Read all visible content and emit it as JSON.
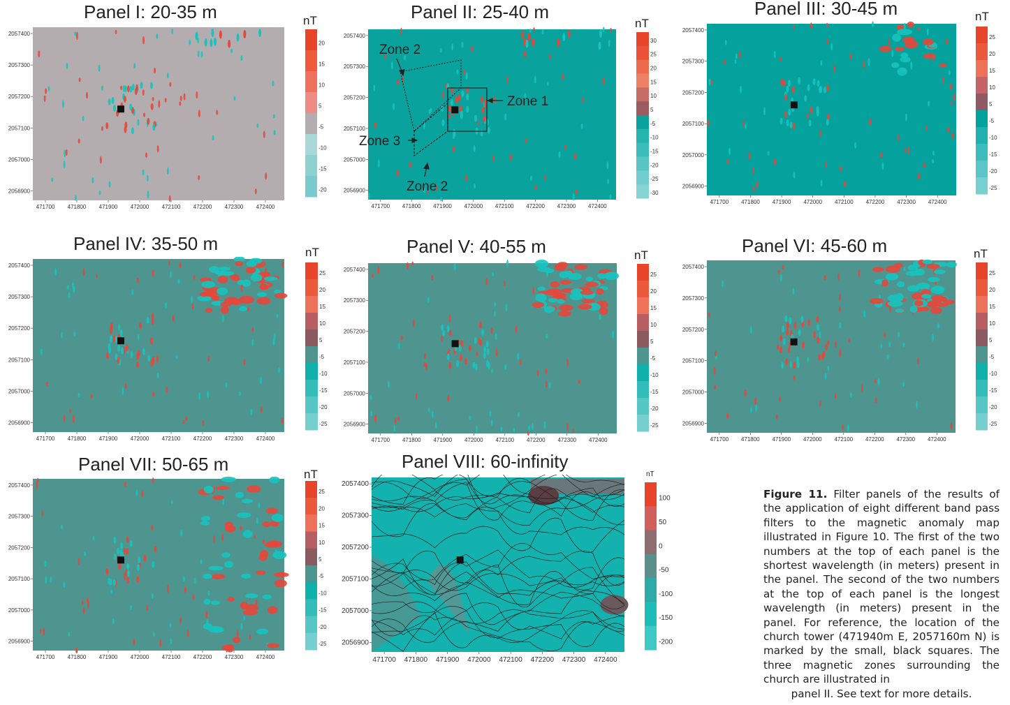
{
  "panels": [
    {
      "id": "I",
      "title": "Panel I: 20-35 m",
      "unit": "nT",
      "bg": "#b4adb0",
      "scale": [
        "20",
        "15",
        "10",
        "5",
        "-5",
        "-10",
        "-15",
        "-20"
      ],
      "scale_colors": [
        "#e8442a",
        "#ef5a3e",
        "#f0705e",
        "#f08a84",
        "#b4adb0",
        "#a8d8d8",
        "#8fd0d0",
        "#78cbcc"
      ],
      "xticks": [
        "471700",
        "471800",
        "471900",
        "472000",
        "472100",
        "472200",
        "472300",
        "472400"
      ],
      "yticks": [
        "2057400",
        "2057300",
        "2057200",
        "2057100",
        "2057000",
        "2056900"
      ]
    },
    {
      "id": "II",
      "title": "Panel II: 25-40 m",
      "unit": "nT",
      "bg": "#0aa29d",
      "scale": [
        "30",
        "25",
        "20",
        "15",
        "10",
        "5",
        "-5",
        "-10",
        "-15",
        "-20",
        "-25",
        "-30"
      ],
      "scale_colors": [
        "#e8442a",
        "#ea5238",
        "#ed6a4f",
        "#ee8064",
        "#c86c68",
        "#9a5c60",
        "#0aa29d",
        "#26b4b1",
        "#3cbdbb",
        "#58c5c4",
        "#6ecdcd",
        "#86d4d4"
      ],
      "xticks": [
        "471700",
        "471800",
        "471900",
        "472000",
        "472100",
        "472200",
        "472300",
        "472400"
      ],
      "yticks": [
        "2057400",
        "2057300",
        "2057200",
        "2057100",
        "2057000",
        "2056900"
      ]
    },
    {
      "id": "III",
      "title": "Panel III: 30-45 m",
      "unit": "nT",
      "bg": "#05a29d",
      "scale": [
        "25",
        "20",
        "15",
        "10",
        "5",
        "-5",
        "-10",
        "-15",
        "-20",
        "-25"
      ],
      "scale_colors": [
        "#e8442a",
        "#ec5a3c",
        "#ee725a",
        "#c66468",
        "#8f5a62",
        "#05a29d",
        "#1fb1ae",
        "#3cbcba",
        "#5ac6c5",
        "#78cfcf"
      ],
      "xticks": [
        "471700",
        "471800",
        "471900",
        "472000",
        "472100",
        "472200",
        "472300",
        "472400"
      ],
      "yticks": [
        "2057400",
        "2057300",
        "2057200",
        "2057100",
        "2057000",
        "2056900"
      ]
    },
    {
      "id": "IV",
      "title": "Panel IV: 35-50 m",
      "unit": "nT",
      "bg": "#4e9590",
      "scale": [
        "25",
        "20",
        "15",
        "10",
        "5",
        "-5",
        "-10",
        "-15",
        "-20",
        "-25"
      ],
      "scale_colors": [
        "#e8442a",
        "#ec5a3c",
        "#ee725a",
        "#b65e62",
        "#8a5a5e",
        "#4e9590",
        "#10b0ab",
        "#34bcba",
        "#56c6c5",
        "#76cfcf"
      ],
      "xticks": [
        "471700",
        "471800",
        "471900",
        "472000",
        "472100",
        "472200",
        "472300",
        "472400"
      ],
      "yticks": [
        "2057400",
        "2057300",
        "2057200",
        "2057100",
        "2057000",
        "2056900"
      ]
    },
    {
      "id": "V",
      "title": "Panel V: 40-55 m",
      "unit": "nT",
      "bg": "#4e9590",
      "scale": [
        "25",
        "20",
        "15",
        "10",
        "5",
        "-5",
        "-10",
        "-15",
        "-20",
        "-25"
      ],
      "scale_colors": [
        "#e8442a",
        "#ec5a3c",
        "#ee725a",
        "#b65e62",
        "#8a5a5e",
        "#4e9590",
        "#10b0ab",
        "#34bcba",
        "#56c6c5",
        "#76cfcf"
      ],
      "xticks": [
        "471700",
        "471800",
        "471900",
        "472000",
        "472100",
        "472200",
        "472300",
        "472400"
      ],
      "yticks": [
        "2057400",
        "2057300",
        "2057200",
        "2057100",
        "2057000",
        "2056900"
      ]
    },
    {
      "id": "VI",
      "title": "Panel VI: 45-60 m",
      "unit": "nT",
      "bg": "#4e9590",
      "scale": [
        "25",
        "20",
        "15",
        "10",
        "5",
        "-5",
        "-10",
        "-15",
        "-20",
        "-25"
      ],
      "scale_colors": [
        "#e8442a",
        "#ec5a3c",
        "#ee725a",
        "#b65e62",
        "#8a5a5e",
        "#4e9590",
        "#10b0ab",
        "#34bcba",
        "#56c6c5",
        "#76cfcf"
      ],
      "xticks": [
        "471700",
        "471800",
        "471900",
        "472000",
        "472100",
        "472200",
        "472300",
        "472400"
      ],
      "yticks": [
        "2057400",
        "2057300",
        "2057200",
        "2057100",
        "2057000",
        "2056900"
      ]
    },
    {
      "id": "VII",
      "title": "Panel VII: 50-65 m",
      "unit": "nT",
      "bg": "#4e9590",
      "scale": [
        "25",
        "20",
        "15",
        "10",
        "5",
        "-5",
        "-10",
        "-15",
        "-20",
        "-25"
      ],
      "scale_colors": [
        "#e8442a",
        "#ec5a3c",
        "#ee725a",
        "#b65e62",
        "#8a5a5e",
        "#4e9590",
        "#10b0ab",
        "#34bcba",
        "#56c6c5",
        "#76cfcf"
      ],
      "xticks": [
        "471700",
        "471800",
        "471900",
        "472000",
        "472100",
        "472200",
        "472300",
        "472400"
      ],
      "yticks": [
        "2057400",
        "2057300",
        "2057200",
        "2057100",
        "2057000",
        "2056900"
      ]
    },
    {
      "id": "VIII",
      "title": "Panel VIII: 60-infinity",
      "unit": "nT",
      "bg": "#14b2ae",
      "scale": [
        "100",
        "50",
        "0",
        "-50",
        "-100",
        "-150",
        "-200"
      ],
      "scale_colors": [
        "#e8442a",
        "#d0605a",
        "#8e6e70",
        "#5c8e8c",
        "#2eaaa8",
        "#1ebdba",
        "#3ec8c6"
      ],
      "xticks": [
        "471700",
        "471800",
        "471900",
        "472000",
        "472100",
        "472200",
        "472300",
        "472400"
      ],
      "yticks": [
        "2057400",
        "2057300",
        "2057200",
        "2057100",
        "2057000",
        "2056900"
      ]
    }
  ],
  "zones": {
    "zone1": "Zone 1",
    "zone2_top": "Zone 2",
    "zone2_bottom": "Zone 2",
    "zone3": "Zone 3"
  },
  "caption": {
    "label": "Figure 11.",
    "body": " Filter panels of the results of the application of eight different band pass filters to the magnetic anomaly map illustrated in Figure 10. The first of the two numbers at the top of each panel is the shortest wavelength (in meters) present in the panel.  The second of the two numbers at the top of each panel is the longest wavelength (in meters) present in the panel. For reference, the location of the church tower (471940m E, 2057160m N) is marked by the small, black squares. The three magnetic zones surrounding the church are illustrated in",
    "last_line": "panel II. See text for more details."
  },
  "chart_data": [
    {
      "type": "heatmap",
      "title": "Panel I: 20-35 m",
      "xlabel": "",
      "ylabel": "",
      "xlim": [
        471660,
        472460
      ],
      "ylim": [
        2056870,
        2057420
      ],
      "colorbar_unit": "nT",
      "colorbar_ticks": [
        20,
        15,
        10,
        5,
        -5,
        -10,
        -15,
        -20
      ],
      "marker": {
        "label": "church tower",
        "x": 471940,
        "y": 2057160
      }
    },
    {
      "type": "heatmap",
      "title": "Panel II: 25-40 m",
      "xlabel": "",
      "ylabel": "",
      "xlim": [
        471660,
        472460
      ],
      "ylim": [
        2056870,
        2057420
      ],
      "colorbar_unit": "nT",
      "colorbar_ticks": [
        30,
        25,
        20,
        15,
        10,
        5,
        -5,
        -10,
        -15,
        -20,
        -25,
        -30
      ],
      "marker": {
        "label": "church tower",
        "x": 471940,
        "y": 2057160
      },
      "annotations": [
        "Zone 1",
        "Zone 2",
        "Zone 3",
        "Zone 2"
      ]
    },
    {
      "type": "heatmap",
      "title": "Panel III: 30-45 m",
      "xlabel": "",
      "ylabel": "",
      "xlim": [
        471660,
        472460
      ],
      "ylim": [
        2056870,
        2057420
      ],
      "colorbar_unit": "nT",
      "colorbar_ticks": [
        25,
        20,
        15,
        10,
        5,
        -5,
        -10,
        -15,
        -20,
        -25
      ],
      "marker": {
        "label": "church tower",
        "x": 471940,
        "y": 2057160
      }
    },
    {
      "type": "heatmap",
      "title": "Panel IV: 35-50 m",
      "xlabel": "",
      "ylabel": "",
      "xlim": [
        471660,
        472460
      ],
      "ylim": [
        2056870,
        2057420
      ],
      "colorbar_unit": "nT",
      "colorbar_ticks": [
        25,
        20,
        15,
        10,
        5,
        -5,
        -10,
        -15,
        -20,
        -25
      ],
      "marker": {
        "label": "church tower",
        "x": 471940,
        "y": 2057160
      }
    },
    {
      "type": "heatmap",
      "title": "Panel V: 40-55 m",
      "xlabel": "",
      "ylabel": "",
      "xlim": [
        471660,
        472460
      ],
      "ylim": [
        2056870,
        2057420
      ],
      "colorbar_unit": "nT",
      "colorbar_ticks": [
        25,
        20,
        15,
        10,
        5,
        -5,
        -10,
        -15,
        -20,
        -25
      ],
      "marker": {
        "label": "church tower",
        "x": 471940,
        "y": 2057160
      }
    },
    {
      "type": "heatmap",
      "title": "Panel VI: 45-60 m",
      "xlabel": "",
      "ylabel": "",
      "xlim": [
        471660,
        472460
      ],
      "ylim": [
        2056870,
        2057420
      ],
      "colorbar_unit": "nT",
      "colorbar_ticks": [
        25,
        20,
        15,
        10,
        5,
        -5,
        -10,
        -15,
        -20,
        -25
      ],
      "marker": {
        "label": "church tower",
        "x": 471940,
        "y": 2057160
      }
    },
    {
      "type": "heatmap",
      "title": "Panel VII: 50-65 m",
      "xlabel": "",
      "ylabel": "",
      "xlim": [
        471660,
        472460
      ],
      "ylim": [
        2056870,
        2057420
      ],
      "colorbar_unit": "nT",
      "colorbar_ticks": [
        25,
        20,
        15,
        10,
        5,
        -5,
        -10,
        -15,
        -20,
        -25
      ],
      "marker": {
        "label": "church tower",
        "x": 471940,
        "y": 2057160
      }
    },
    {
      "type": "heatmap",
      "title": "Panel VIII: 60-infinity",
      "xlabel": "",
      "ylabel": "",
      "xlim": [
        471660,
        472460
      ],
      "ylim": [
        2056870,
        2057420
      ],
      "colorbar_unit": "nT",
      "colorbar_ticks": [
        100,
        50,
        0,
        -50,
        -100,
        -150,
        -200
      ],
      "marker": {
        "label": "church tower",
        "x": 471940,
        "y": 2057160
      }
    }
  ]
}
